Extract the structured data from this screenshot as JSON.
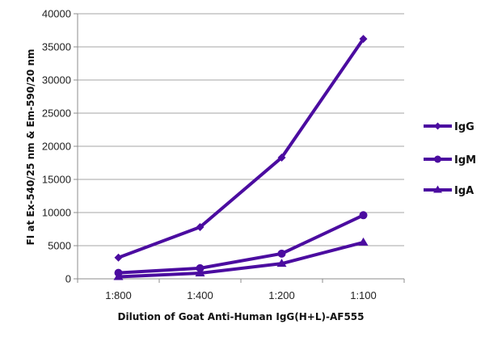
{
  "chart_data": {
    "type": "line",
    "title": "",
    "xlabel": "Dilution of Goat Anti-Human IgG(H+L)-AF555",
    "ylabel": "FI at Ex-540/25 nm & Em-590/20 nm",
    "categories": [
      "1:800",
      "1:400",
      "1:200",
      "1:100"
    ],
    "ylim": [
      0,
      40000
    ],
    "yticks": [
      0,
      5000,
      10000,
      15000,
      20000,
      25000,
      30000,
      35000,
      40000
    ],
    "grid": true,
    "legend_position": "right",
    "series": [
      {
        "name": "IgG",
        "marker": "diamond",
        "values": [
          3200,
          7800,
          18300,
          36200
        ]
      },
      {
        "name": "IgM",
        "marker": "circle",
        "values": [
          900,
          1600,
          3800,
          9600
        ]
      },
      {
        "name": "IgA",
        "marker": "triangle",
        "values": [
          300,
          850,
          2300,
          5500
        ]
      }
    ],
    "colors": {
      "line": "#4B0CA0",
      "grid": "#a6a6a6",
      "axis": "#8c8c8c"
    }
  }
}
